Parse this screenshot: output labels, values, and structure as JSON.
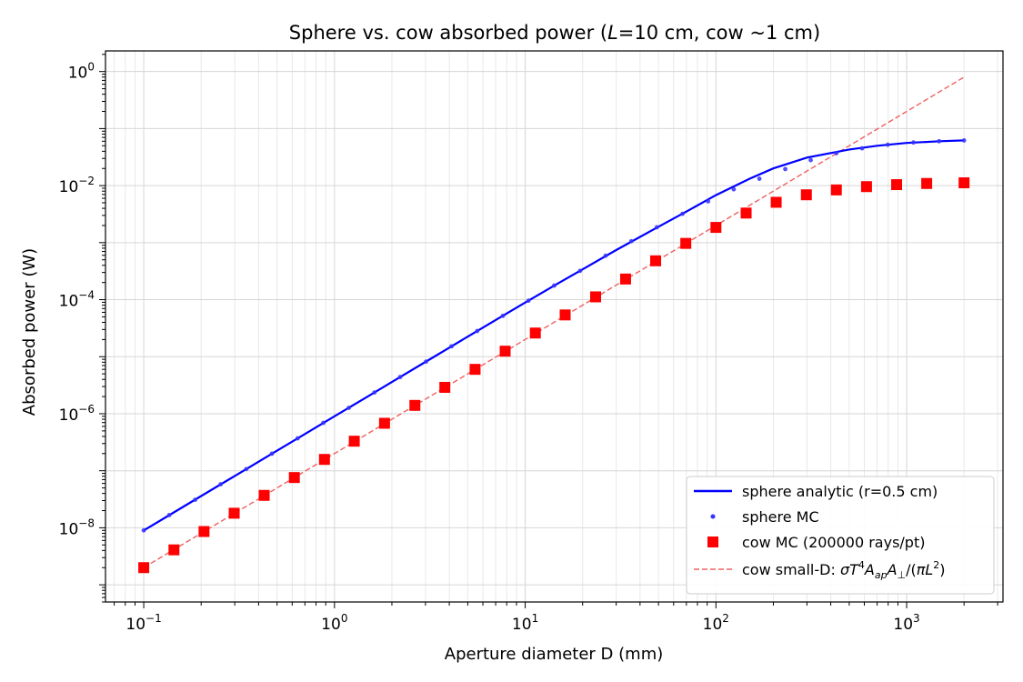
{
  "chart_data": {
    "type": "line",
    "title_prefix": "Sphere vs. cow absorbed power (",
    "title_var": "L",
    "title_suffix": "=10 cm, cow ~1 cm)",
    "xlabel": "Aperture diameter D (mm)",
    "ylabel": "Absorbed power (W)",
    "x_scale": "log",
    "y_scale": "log",
    "xlim": [
      0.063,
      3200
    ],
    "ylim": [
      5e-10,
      2.3
    ],
    "x_tick_labels": [
      {
        "value": 0.1,
        "base": "10",
        "exp": "−1"
      },
      {
        "value": 1,
        "base": "10",
        "exp": "0"
      },
      {
        "value": 10,
        "base": "10",
        "exp": "1"
      },
      {
        "value": 100,
        "base": "10",
        "exp": "2"
      },
      {
        "value": 1000,
        "base": "10",
        "exp": "3"
      }
    ],
    "y_tick_labels": [
      {
        "value": 1e-08,
        "base": "10",
        "exp": "−8"
      },
      {
        "value": 1e-06,
        "base": "10",
        "exp": "−6"
      },
      {
        "value": 0.0001,
        "base": "10",
        "exp": "−4"
      },
      {
        "value": 0.01,
        "base": "10",
        "exp": "−2"
      },
      {
        "value": 1,
        "base": "10",
        "exp": "0"
      }
    ],
    "grid": true,
    "legend_position": "bottom-right",
    "series": [
      {
        "name": "sphere analytic (r=0.5 cm)",
        "kind": "line",
        "color": "#0000ff",
        "x": [
          0.1,
          0.14,
          0.2,
          0.3,
          0.5,
          0.7,
          1,
          1.5,
          2,
          3,
          5,
          7,
          10,
          15,
          20,
          30,
          50,
          70,
          100,
          150,
          200,
          300,
          500,
          700,
          1000,
          1500,
          2000
        ],
        "y": [
          9e-09,
          1.76e-08,
          3.6e-08,
          8.1e-08,
          2.25e-07,
          4.4e-07,
          9e-07,
          2.02e-06,
          3.6e-06,
          8.1e-06,
          2.25e-05,
          4.4e-05,
          8.9e-05,
          0.000196,
          0.00034,
          0.00074,
          0.0019,
          0.0035,
          0.0068,
          0.0132,
          0.02,
          0.031,
          0.043,
          0.05,
          0.056,
          0.06,
          0.062
        ]
      },
      {
        "name": "sphere MC",
        "kind": "points",
        "color": "#3333ff",
        "x": [
          0.1,
          0.136,
          0.186,
          0.253,
          0.345,
          0.47,
          0.641,
          0.874,
          1.19,
          1.62,
          2.21,
          3.02,
          4.11,
          5.6,
          7.64,
          10.4,
          14.2,
          19.4,
          26.4,
          36,
          49,
          66.8,
          91,
          124,
          169,
          231,
          314,
          428,
          584,
          796,
          1085,
          1479,
          2000
        ],
        "y": [
          9e-09,
          1.67e-08,
          3.1e-08,
          5.8e-08,
          1.07e-07,
          1.99e-07,
          3.7e-07,
          6.9e-07,
          1.27e-06,
          2.36e-06,
          4.4e-06,
          8.2e-06,
          1.52e-05,
          2.82e-05,
          5.2e-05,
          9.6e-05,
          0.000177,
          0.00032,
          0.00059,
          0.00106,
          0.00186,
          0.0032,
          0.0053,
          0.0086,
          0.0132,
          0.0195,
          0.028,
          0.037,
          0.045,
          0.052,
          0.057,
          0.06,
          0.062
        ]
      },
      {
        "name": "cow MC (200000 rays/pt)",
        "kind": "squares",
        "color": "#ff0000",
        "x": [
          0.1,
          0.144,
          0.207,
          0.298,
          0.428,
          0.616,
          0.886,
          1.27,
          1.83,
          2.64,
          3.79,
          5.46,
          7.85,
          11.3,
          16.2,
          23.4,
          33.6,
          48.3,
          69.5,
          100,
          144,
          207,
          298,
          428,
          616,
          886,
          1274,
          2000
        ],
        "y": [
          2e-09,
          4.1e-09,
          8.6e-09,
          1.8e-08,
          3.7e-08,
          7.6e-08,
          1.58e-07,
          3.3e-07,
          6.8e-07,
          1.4e-06,
          2.9e-06,
          6e-06,
          1.25e-05,
          2.6e-05,
          5.4e-05,
          0.000112,
          0.00023,
          0.00048,
          0.00097,
          0.00185,
          0.0033,
          0.0051,
          0.0069,
          0.0084,
          0.0096,
          0.0104,
          0.0109,
          0.0112
        ]
      },
      {
        "name_plain": "cow small-D: ",
        "kind": "dashed",
        "color": "#f06060",
        "x": [
          0.1,
          2000
        ],
        "y": [
          2e-09,
          0.8
        ]
      }
    ]
  }
}
